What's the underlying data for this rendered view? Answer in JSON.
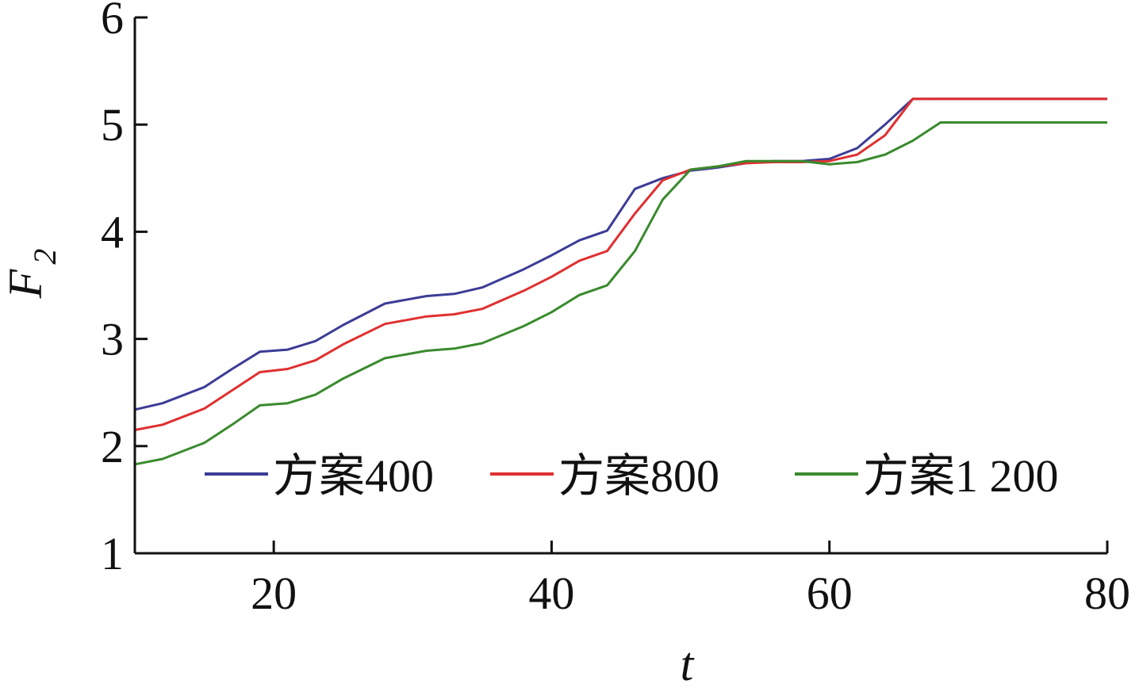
{
  "chart_data": {
    "type": "line",
    "xlabel": "t",
    "ylabel_main": "F",
    "ylabel_sub": "2",
    "xlim": [
      10,
      80
    ],
    "ylim": [
      1,
      6
    ],
    "xticks": [
      20,
      40,
      60,
      80
    ],
    "yticks": [
      1,
      2,
      3,
      4,
      5,
      6
    ],
    "grid": false,
    "legend_position": "bottom-right",
    "x": [
      10,
      12,
      15,
      17,
      19,
      21,
      23,
      25,
      28,
      31,
      33,
      35,
      38,
      40,
      42,
      44,
      46,
      48,
      50,
      52,
      54,
      56,
      58,
      60,
      62,
      64,
      66,
      68,
      70,
      80
    ],
    "series": [
      {
        "name": "方案400",
        "color": "#3c3c96",
        "values": [
          2.34,
          2.4,
          2.55,
          2.72,
          2.88,
          2.9,
          2.98,
          3.13,
          3.33,
          3.4,
          3.42,
          3.48,
          3.65,
          3.78,
          3.92,
          4.01,
          4.4,
          4.5,
          4.57,
          4.6,
          4.64,
          4.66,
          4.66,
          4.68,
          4.78,
          5.0,
          5.24,
          5.24,
          5.24,
          5.24
        ]
      },
      {
        "name": "方案800",
        "color": "#e03030",
        "values": [
          2.15,
          2.2,
          2.35,
          2.52,
          2.69,
          2.72,
          2.8,
          2.95,
          3.14,
          3.21,
          3.23,
          3.28,
          3.45,
          3.58,
          3.73,
          3.82,
          4.17,
          4.48,
          4.58,
          4.61,
          4.64,
          4.65,
          4.65,
          4.66,
          4.72,
          4.9,
          5.24,
          5.24,
          5.24,
          5.24
        ]
      },
      {
        "name": "方案1 200",
        "color": "#3a8a2e",
        "values": [
          1.83,
          1.88,
          2.03,
          2.2,
          2.38,
          2.4,
          2.48,
          2.63,
          2.82,
          2.89,
          2.91,
          2.96,
          3.12,
          3.25,
          3.41,
          3.5,
          3.82,
          4.3,
          4.58,
          4.61,
          4.66,
          4.66,
          4.66,
          4.63,
          4.65,
          4.72,
          4.85,
          5.02,
          5.02,
          5.02
        ]
      }
    ]
  }
}
